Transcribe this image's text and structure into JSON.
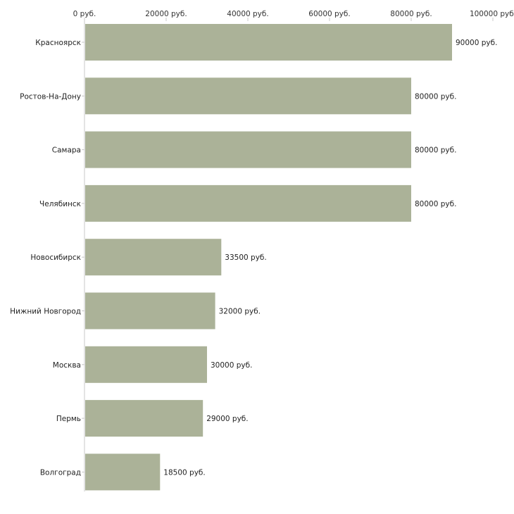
{
  "chart_data": {
    "type": "bar",
    "orientation": "horizontal",
    "title": "",
    "xlabel": "",
    "ylabel": "",
    "xlim": [
      0,
      100000
    ],
    "unit_suffix": " руб.",
    "ticks": [
      0,
      20000,
      40000,
      60000,
      80000,
      100000
    ],
    "tick_labels": [
      "0 руб.",
      "20000 руб.",
      "40000 руб.",
      "60000 руб.",
      "80000 руб.",
      "100000 руб."
    ],
    "categories": [
      "Красноярск",
      "Ростов-На-Дону",
      "Самара",
      "Челябинск",
      "Новосибирск",
      "Нижний Новгород",
      "Москва",
      "Пермь",
      "Волгоград"
    ],
    "values": [
      90000,
      80000,
      80000,
      80000,
      33500,
      32000,
      30000,
      29000,
      18500
    ],
    "value_labels": [
      "90000 руб.",
      "80000 руб.",
      "80000 руб.",
      "80000 руб.",
      "33500 руб.",
      "32000 руб.",
      "30000 руб.",
      "29000 руб.",
      "18500 руб."
    ],
    "bar_color": "#abb298",
    "grid": false,
    "legend": "none"
  }
}
